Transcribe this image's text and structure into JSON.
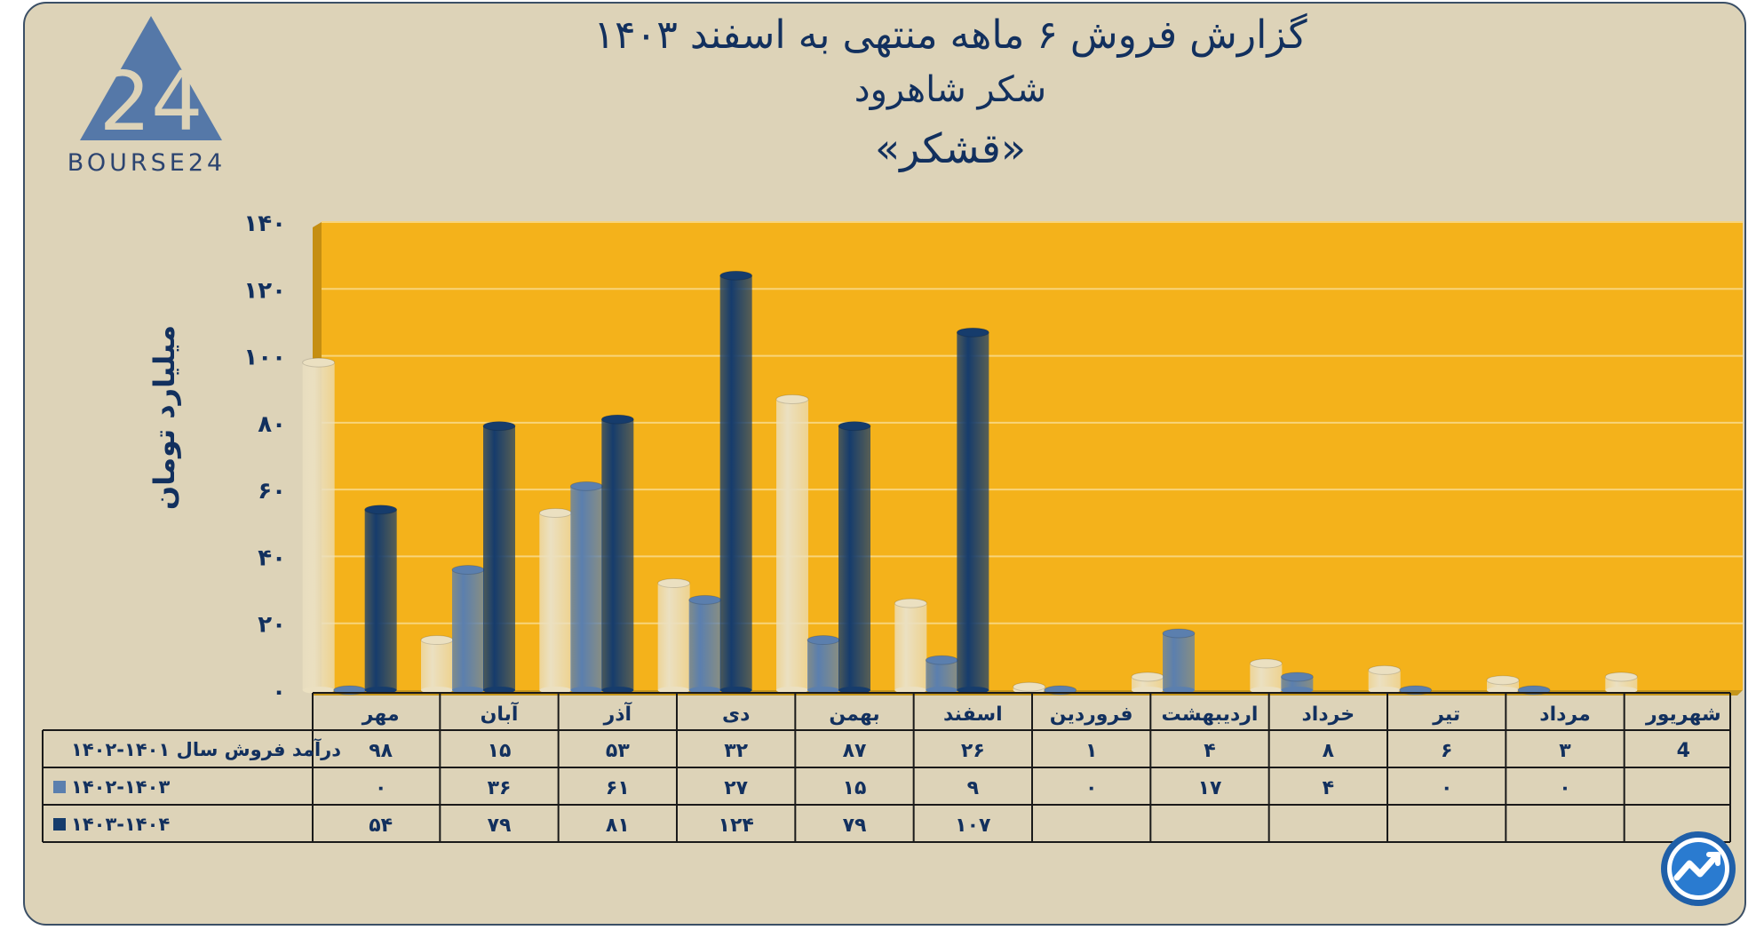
{
  "header": {
    "title_line1": "گزارش  فروش ۶ ماهه منتهی به اسفند ۱۴۰۳",
    "title_line2": "شکر شاهرود",
    "title_line3": "«قشکر»"
  },
  "logo": {
    "text": "BOURSE24",
    "mark": "24"
  },
  "chart_data": {
    "type": "bar",
    "title": "گزارش  فروش ۶ ماهه منتهی به اسفند ۱۴۰۳ - شکر شاهرود «قشکر»",
    "ylabel": "میلیارد تومان",
    "ylim": [
      0,
      140
    ],
    "yticks": [
      0,
      20,
      40,
      60,
      80,
      100,
      120,
      140
    ],
    "ytick_labels": [
      "۰",
      "۲۰",
      "۴۰",
      "۶۰",
      "۸۰",
      "۱۰۰",
      "۱۲۰",
      "۱۴۰"
    ],
    "categories": [
      "مهر",
      "آبان",
      "آذر",
      "دی",
      "بهمن",
      "اسفند",
      "فروردین",
      "اردیبهشت",
      "خرداد",
      "تیر",
      "مرداد",
      "شهریور"
    ],
    "series": [
      {
        "name": "درآمد فروش سال ۱۴۰۱-۱۴۰۲",
        "color": "#ebe0c1",
        "values": [
          98,
          15,
          53,
          32,
          87,
          26,
          1,
          4,
          8,
          6,
          3,
          4
        ],
        "labels": [
          "۹۸",
          "۱۵",
          "۵۳",
          "۳۲",
          "۸۷",
          "۲۶",
          "۱",
          "۴",
          "۸",
          "۶",
          "۳",
          "4"
        ]
      },
      {
        "name": "۱۴۰۲-۱۴۰۳",
        "color": "#5b7fae",
        "values": [
          0,
          36,
          61,
          27,
          15,
          9,
          0,
          17,
          4,
          0,
          0,
          null
        ],
        "labels": [
          "۰",
          "۳۶",
          "۶۱",
          "۲۷",
          "۱۵",
          "۹",
          "۰",
          "۱۷",
          "۴",
          "۰",
          "۰",
          ""
        ]
      },
      {
        "name": "۱۴۰۳-۱۴۰۴",
        "color": "#163c6c",
        "values": [
          54,
          79,
          81,
          124,
          79,
          107,
          null,
          null,
          null,
          null,
          null,
          null
        ],
        "labels": [
          "۵۴",
          "۷۹",
          "۸۱",
          "۱۲۴",
          "۷۹",
          "۱۰۷",
          "",
          "",
          "",
          "",
          "",
          ""
        ]
      }
    ]
  },
  "colors": {
    "background": "#ddd3b8",
    "plot_area": "#f4b21b",
    "plot_wall": "#c58e12",
    "gridline": "#f8d47a",
    "text": "#12305e"
  }
}
